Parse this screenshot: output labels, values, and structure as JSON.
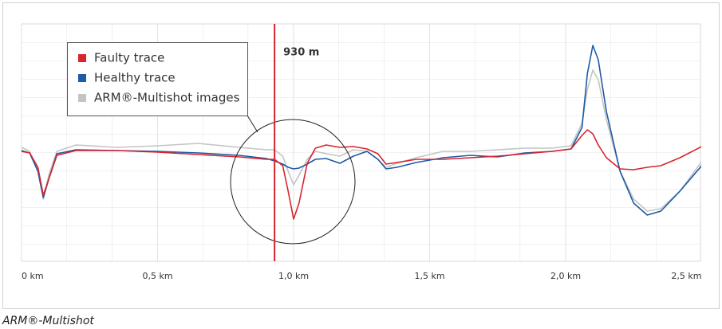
{
  "chart_data": {
    "type": "line",
    "caption": "ARM®-Multishot",
    "x": [
      0,
      0.03,
      0.06,
      0.08,
      0.1,
      0.13,
      0.2,
      0.35,
      0.5,
      0.65,
      0.8,
      0.9,
      0.93,
      0.96,
      0.98,
      1.0,
      1.02,
      1.05,
      1.08,
      1.12,
      1.17,
      1.22,
      1.27,
      1.31,
      1.34,
      1.38,
      1.45,
      1.55,
      1.65,
      1.75,
      1.85,
      1.95,
      2.02,
      2.06,
      2.08,
      2.1,
      2.12,
      2.15,
      2.2,
      2.25,
      2.3,
      2.35,
      2.42,
      2.5
    ],
    "series": [
      {
        "name": "ARM®-Multishot images",
        "color": "#c4c4c4",
        "values": [
          -6,
          -11,
          -36,
          -71,
          -41,
          -11,
          -3,
          -6,
          -4,
          -1,
          -6,
          -9,
          -9,
          -17,
          -36,
          -53,
          -41,
          -21,
          -11,
          -14,
          -17,
          -9,
          -11,
          -21,
          -31,
          -26,
          -19,
          -11,
          -11,
          -9,
          -7,
          -7,
          -4,
          24,
          67,
          91,
          79,
          29,
          -36,
          -71,
          -86,
          -83,
          -61,
          -24
        ]
      },
      {
        "name": "Healthy trace",
        "color": "#1f5aa6",
        "values": [
          -10,
          -13,
          -36,
          -69,
          -46,
          -14,
          -9,
          -10,
          -11,
          -13,
          -16,
          -20,
          -23,
          -27,
          -31,
          -33,
          -32,
          -27,
          -21,
          -20,
          -26,
          -17,
          -11,
          -21,
          -33,
          -31,
          -25,
          -19,
          -16,
          -18,
          -13,
          -11,
          -8,
          19,
          87,
          122,
          104,
          39,
          -36,
          -76,
          -91,
          -86,
          -61,
          -29
        ]
      },
      {
        "name": "Faulty trace",
        "color": "#d9232e",
        "values": [
          -11,
          -13,
          -31,
          -66,
          -46,
          -16,
          -10,
          -10,
          -12,
          -15,
          -18,
          -21,
          -21,
          -29,
          -61,
          -96,
          -76,
          -26,
          -7,
          -3,
          -6,
          -5,
          -8,
          -14,
          -27,
          -25,
          -21,
          -21,
          -19,
          -17,
          -14,
          -11,
          -8,
          9,
          16,
          11,
          -3,
          -19,
          -33,
          -34,
          -31,
          -29,
          -19,
          -5
        ]
      }
    ],
    "legend_order": [
      2,
      1,
      0
    ],
    "marker": {
      "x": 0.93,
      "label": "930 m",
      "color": "#d9232e"
    },
    "xlim": [
      0,
      2.5
    ],
    "ylim": [
      -150,
      150
    ],
    "xticks": [
      {
        "value": 0,
        "label": "0 km"
      },
      {
        "value": 0.5,
        "label": "0,5 km"
      },
      {
        "value": 1.0,
        "label": "1,0 km"
      },
      {
        "value": 1.5,
        "label": "1,5 km"
      },
      {
        "value": 2.0,
        "label": "2,0 km"
      },
      {
        "value": 2.5,
        "label": "2,5 km"
      }
    ],
    "grid": true
  }
}
